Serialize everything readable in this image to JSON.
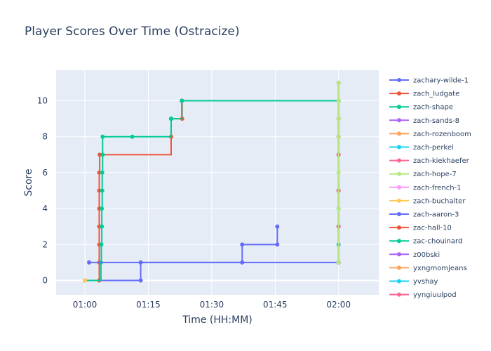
{
  "chart_data": {
    "type": "line",
    "line_shape": "step",
    "title": "Player Scores Over Time (Ostracize)",
    "xlabel": "Time (HH:MM)",
    "ylabel": "Score",
    "x_ticks": [
      "01:00",
      "01:15",
      "01:30",
      "01:45",
      "02:00"
    ],
    "x_tick_minutes": [
      60,
      75,
      90,
      105,
      120
    ],
    "xlim_minutes": [
      53.2,
      129.5
    ],
    "y_ticks": [
      0,
      2,
      4,
      6,
      8,
      10
    ],
    "ylim": [
      -0.8,
      11.7
    ],
    "grid": true,
    "legend_position": "right",
    "plot_background": "#E5ECF6",
    "series": [
      {
        "name": "zachary-wilde-1",
        "color": "#636EFA",
        "x": [
          60.0,
          73.2,
          73.2,
          120.0
        ],
        "y": [
          0,
          0,
          1,
          1
        ]
      },
      {
        "name": "zach_ludgate",
        "color": "#EF553B",
        "x": [
          60.0,
          63.4,
          63.4,
          63.4,
          63.4,
          63.4,
          63.4,
          63.4,
          63.5,
          80.4,
          80.4,
          83.0,
          83.0,
          120.0
        ],
        "y": [
          0,
          0,
          1,
          2,
          3,
          4,
          5,
          6,
          7,
          8,
          9,
          9,
          10,
          10
        ]
      },
      {
        "name": "zach-shape",
        "color": "#00CC96",
        "x": [
          60.0,
          63.8,
          63.9,
          64.0,
          64.0,
          64.1,
          64.1,
          64.2,
          64.2,
          71.2,
          80.4,
          80.4,
          82.9,
          120.0
        ],
        "y": [
          0,
          1,
          2,
          3,
          4,
          5,
          6,
          7,
          8,
          8,
          9,
          9,
          10,
          10
        ]
      },
      {
        "name": "zach-sands-8",
        "color": "#AB63FA",
        "x": [
          60.0
        ],
        "y": [
          0
        ]
      },
      {
        "name": "zach-rozenboom",
        "color": "#FFA15A",
        "x": [
          60.0
        ],
        "y": [
          0
        ]
      },
      {
        "name": "zach-perkel",
        "color": "#19D3F3",
        "x": [
          60.0
        ],
        "y": [
          0
        ]
      },
      {
        "name": "zach-kiekhaefer",
        "color": "#FF6692",
        "x": [
          60.0
        ],
        "y": [
          0
        ]
      },
      {
        "name": "zach-hope-7",
        "color": "#B6E880",
        "x": [
          60.0
        ],
        "y": [
          0
        ]
      },
      {
        "name": "zach-french-1",
        "color": "#FF97FF",
        "x": [
          60.0
        ],
        "y": [
          0
        ]
      },
      {
        "name": "zach-buchalter",
        "color": "#FECB52",
        "x": [
          60.0
        ],
        "y": [
          0
        ]
      },
      {
        "name": "zach-aaron-3",
        "color": "#636EFA",
        "x": [
          61.0,
          97.2,
          97.2,
          105.5,
          105.5
        ],
        "y": [
          1,
          1,
          2,
          2,
          3
        ]
      },
      {
        "name": "zac-hall-10",
        "color": "#EF553B",
        "x": [
          120.0,
          120.0,
          120.0,
          120.0,
          120.0,
          120.0,
          120.0,
          120.0
        ],
        "y": [
          1,
          3,
          5,
          7,
          8,
          9,
          10,
          11
        ]
      },
      {
        "name": "zac-chouinard",
        "color": "#00CC96",
        "x": [
          120.0,
          120.0,
          120.0
        ],
        "y": [
          1,
          4,
          10
        ]
      },
      {
        "name": "z00bski",
        "color": "#AB63FA",
        "x": [
          120.0,
          120.0
        ],
        "y": [
          1,
          2
        ]
      },
      {
        "name": "yxngmomjeans",
        "color": "#FFA15A",
        "x": [
          120.0,
          120.0
        ],
        "y": [
          1,
          2
        ]
      },
      {
        "name": "yvshay",
        "color": "#19D3F3",
        "x": [
          120.0,
          120.0,
          120.0
        ],
        "y": [
          1,
          2,
          3
        ]
      },
      {
        "name": "yyngiuulpod",
        "color": "#FF6692",
        "x": [
          120.0,
          120.0,
          120.0,
          120.0,
          120.0,
          120.0
        ],
        "y": [
          1,
          3,
          5,
          7,
          8,
          9
        ]
      },
      {
        "name": "zach-hope-7-late",
        "legend": false,
        "color": "#B6E880",
        "x": [
          120.0,
          120.0,
          120.0,
          120.0,
          120.0,
          120.0,
          120.0
        ],
        "y": [
          1,
          4,
          6,
          8,
          9,
          10,
          11
        ]
      }
    ],
    "legend_labels": [
      "zachary-wilde-1",
      "zach_ludgate",
      "zach-shape",
      "zach-sands-8",
      "zach-rozenboom",
      "zach-perkel",
      "zach-kiekhaefer",
      "zach-hope-7",
      "zach-french-1",
      "zach-buchalter",
      "zach-aaron-3",
      "zac-hall-10",
      "zac-chouinard",
      "z00bski",
      "yxngmomjeans",
      "yvshay",
      "yyngiuulpod"
    ]
  }
}
